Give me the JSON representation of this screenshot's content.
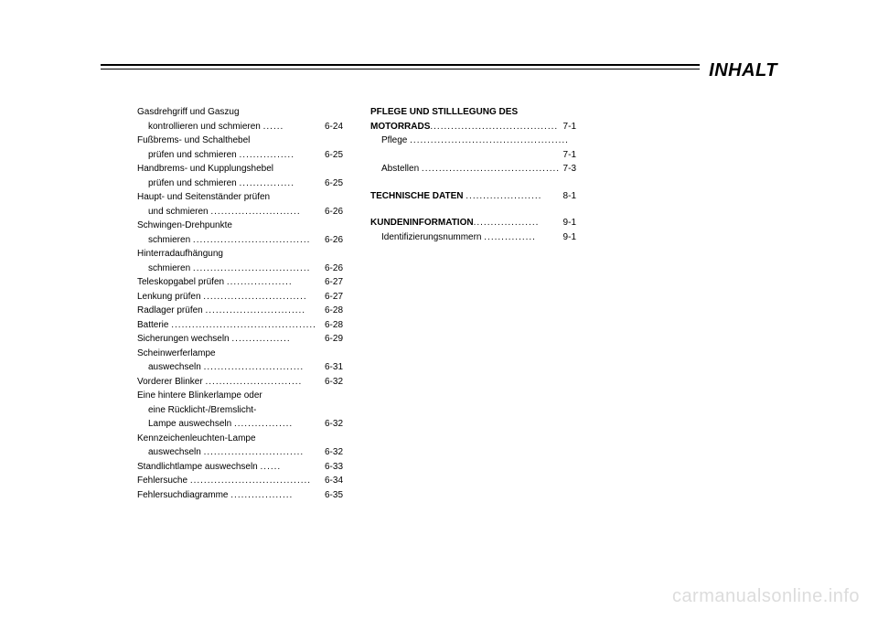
{
  "header": {
    "title": "INHALT"
  },
  "col1": [
    {
      "label": "Gasdrehgriff und Gaszug",
      "cont": "kontrollieren und schmieren",
      "page": "6-24"
    },
    {
      "label": "Fußbrems- und Schalthebel",
      "cont": "prüfen und schmieren",
      "page": "6-25"
    },
    {
      "label": "Handbrems- und Kupplungshebel",
      "cont": "prüfen und schmieren",
      "page": "6-25"
    },
    {
      "label": "Haupt- und Seitenständer prüfen",
      "cont": "und schmieren",
      "page": "6-26"
    },
    {
      "label": "Schwingen-Drehpunkte",
      "cont": "schmieren",
      "page": "6-26"
    },
    {
      "label": "Hinterradaufhängung",
      "cont": "schmieren",
      "page": "6-26"
    },
    {
      "label": "Teleskopgabel prüfen",
      "page": "6-27"
    },
    {
      "label": "Lenkung prüfen",
      "page": "6-27"
    },
    {
      "label": "Radlager prüfen",
      "page": "6-28"
    },
    {
      "label": "Batterie",
      "page": "6-28"
    },
    {
      "label": "Sicherungen wechseln",
      "page": "6-29"
    },
    {
      "label": "Scheinwerferlampe",
      "cont": "auswechseln",
      "page": "6-31"
    },
    {
      "label": "Vorderer Blinker",
      "page": "6-32"
    },
    {
      "label": "Eine hintere Blinkerlampe oder",
      "cont": "eine Rücklicht-/Bremslicht-",
      "cont2": "Lampe auswechseln",
      "page": "6-32"
    },
    {
      "label": "Kennzeichenleuchten-Lampe",
      "cont": "auswechseln",
      "page": "6-32"
    },
    {
      "label": "Standlichtlampe auswechseln",
      "page": "6-33"
    },
    {
      "label": "Fehlersuche",
      "page": "6-34"
    },
    {
      "label": "Fehlersuchdiagramme",
      "page": "6-35"
    }
  ],
  "col2": {
    "section1": {
      "heading": "PFLEGE UND STILLLEGUNG DES",
      "heading2": "MOTORRADS",
      "heading_page": "7-1",
      "items": [
        {
          "label": "Pflege",
          "page": "7-1"
        },
        {
          "label": "Abstellen",
          "page": "7-3"
        }
      ]
    },
    "section2": {
      "heading": "TECHNISCHE DATEN",
      "heading_page": "8-1"
    },
    "section3": {
      "heading": "KUNDENINFORMATION",
      "heading_page": "9-1",
      "items": [
        {
          "label": "Identifizierungsnummern",
          "page": "9-1"
        }
      ]
    }
  },
  "watermark": "carmanualsonline.info"
}
